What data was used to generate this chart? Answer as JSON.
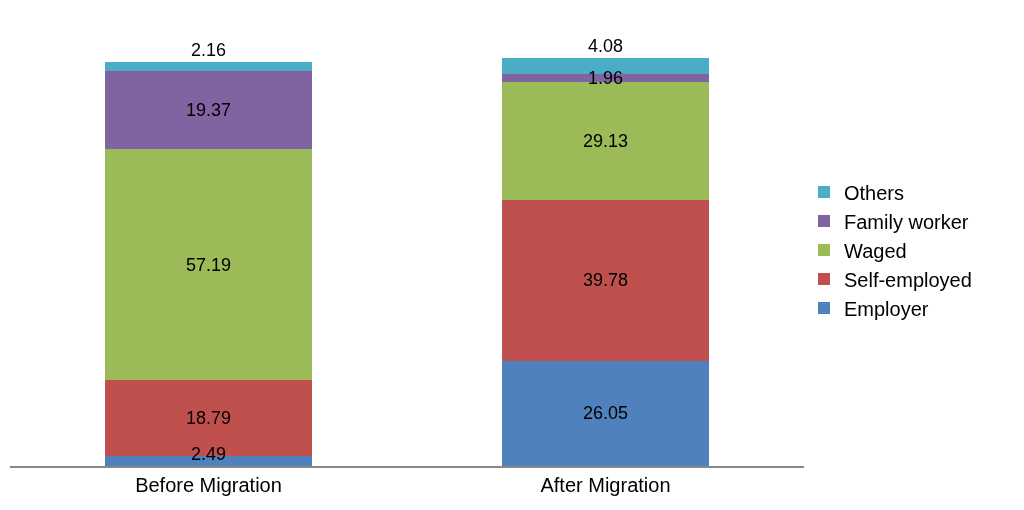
{
  "chart_data": {
    "type": "bar",
    "stacked": true,
    "data_labels": true,
    "legend": "right",
    "categories": [
      "Before Migration",
      "After Migration"
    ],
    "series": [
      {
        "name": "Employer",
        "color": "#4f81bd",
        "values": [
          2.49,
          26.05
        ]
      },
      {
        "name": "Self-employed",
        "color": "#c0504d",
        "values": [
          18.79,
          39.78
        ]
      },
      {
        "name": "Waged",
        "color": "#9bbb59",
        "values": [
          57.19,
          29.13
        ]
      },
      {
        "name": "Family worker",
        "color": "#8064a2",
        "values": [
          19.37,
          1.96
        ]
      },
      {
        "name": "Others",
        "color": "#4bacc6",
        "values": [
          2.16,
          4.08
        ]
      }
    ]
  }
}
